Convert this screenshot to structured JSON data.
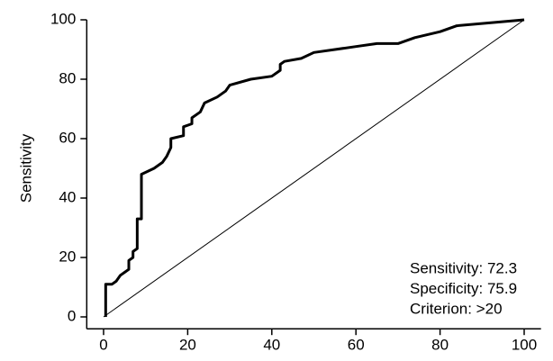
{
  "chart_data": {
    "type": "line",
    "y_label": "Sensitivity",
    "annotations": [
      "Sensitivity: 72.3",
      "Specificity: 75.9",
      "Criterion: >20"
    ],
    "series": [
      {
        "color": "#000000",
        "x": [
          0.5,
          0.5,
          2,
          3,
          4,
          5,
          6,
          6,
          7,
          7,
          8,
          8,
          9,
          9,
          12,
          14,
          15,
          16,
          16,
          19,
          19,
          21,
          21,
          23,
          24,
          27,
          29,
          30,
          35,
          40,
          42,
          42,
          43,
          47,
          50,
          60,
          65,
          70,
          74,
          80,
          84,
          100
        ],
        "values": [
          0,
          11,
          11,
          12,
          14,
          15,
          16,
          19,
          20,
          22,
          23,
          33,
          33,
          48,
          50,
          52,
          54,
          57,
          60,
          61,
          64,
          65,
          67,
          69,
          72,
          74,
          76,
          78,
          80,
          81,
          83,
          85,
          86,
          87,
          89,
          91,
          92,
          92,
          94,
          96,
          98,
          100
        ]
      },
      {
        "color": "#000000",
        "x": [
          0,
          100
        ],
        "values": [
          0,
          100
        ]
      }
    ],
    "xlim": [
      -4,
      104
    ],
    "ylim": [
      -4,
      100
    ],
    "xticks": [
      0,
      20,
      40,
      60,
      80,
      100
    ],
    "yticks": [
      0,
      20,
      40,
      60,
      80,
      100
    ]
  }
}
